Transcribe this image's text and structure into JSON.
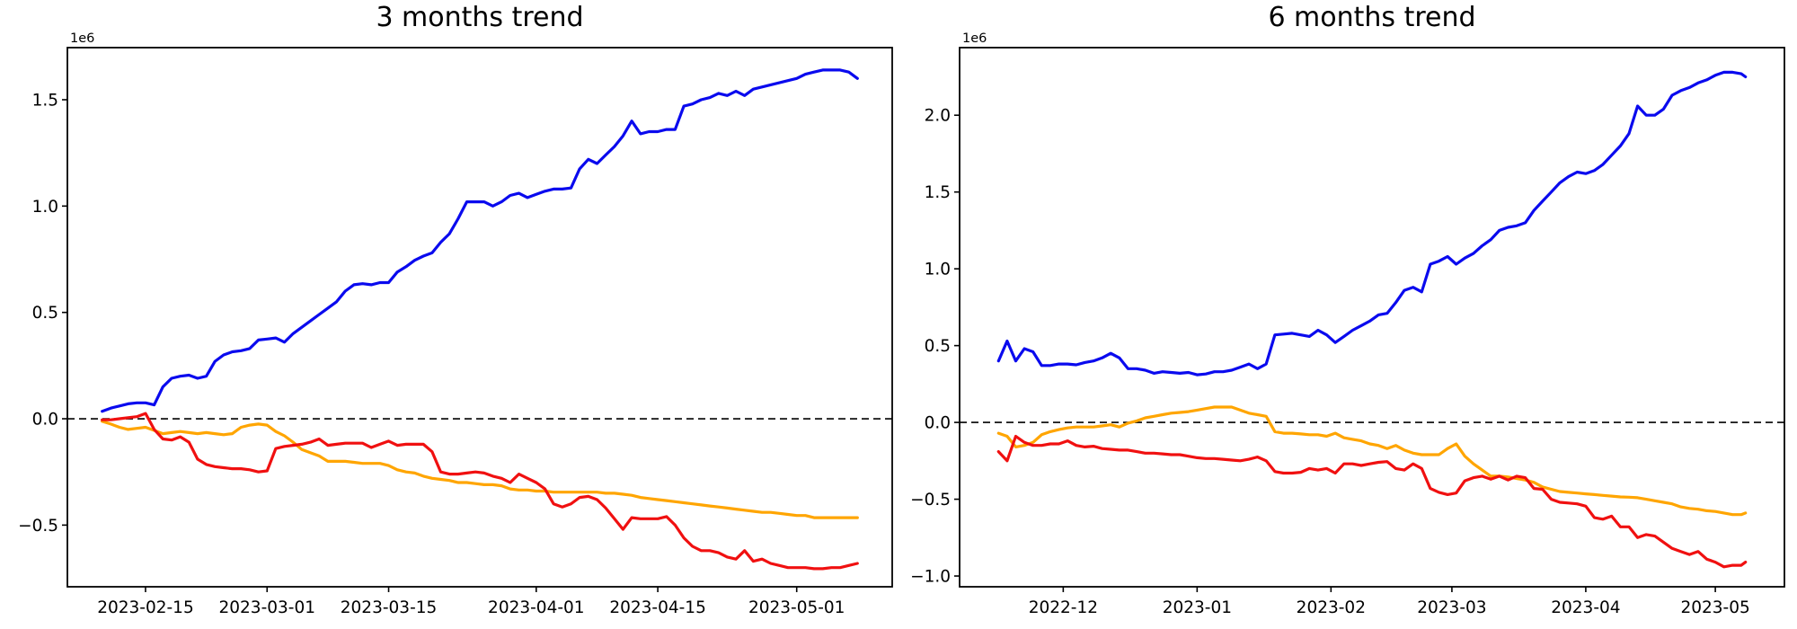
{
  "figure": {
    "background": "#ffffff",
    "text_color": "#000000",
    "axis_color": "#000000"
  },
  "chart_data": [
    {
      "type": "line",
      "name": "3-months-trend",
      "title": "3 months trend",
      "y_offset_label": "1e6",
      "y_unit": "values are in units of 1e6",
      "grid": false,
      "legend": null,
      "xlim": [
        "2023-02-06",
        "2023-05-12"
      ],
      "ylim": [
        -0.79,
        1.745
      ],
      "xticks": [
        {
          "date": "2023-02-15",
          "label": "2023-02-15"
        },
        {
          "date": "2023-03-01",
          "label": "2023-03-01"
        },
        {
          "date": "2023-03-15",
          "label": "2023-03-15"
        },
        {
          "date": "2023-04-01",
          "label": "2023-04-01"
        },
        {
          "date": "2023-04-15",
          "label": "2023-04-15"
        },
        {
          "date": "2023-05-01",
          "label": "2023-05-01"
        }
      ],
      "yticks": [
        {
          "value": -0.5,
          "label": "−0.5"
        },
        {
          "value": 0.0,
          "label": "0.0"
        },
        {
          "value": 0.5,
          "label": "0.5"
        },
        {
          "value": 1.0,
          "label": "1.0"
        },
        {
          "value": 1.5,
          "label": "1.5"
        }
      ],
      "zero_line": {
        "value": 0,
        "style": "dashed",
        "color": "#000000"
      },
      "x": [
        "2023-02-10",
        "2023-02-11",
        "2023-02-12",
        "2023-02-13",
        "2023-02-14",
        "2023-02-15",
        "2023-02-16",
        "2023-02-17",
        "2023-02-18",
        "2023-02-19",
        "2023-02-20",
        "2023-02-21",
        "2023-02-22",
        "2023-02-23",
        "2023-02-24",
        "2023-02-25",
        "2023-02-26",
        "2023-02-27",
        "2023-02-28",
        "2023-03-01",
        "2023-03-02",
        "2023-03-03",
        "2023-03-04",
        "2023-03-05",
        "2023-03-06",
        "2023-03-07",
        "2023-03-08",
        "2023-03-09",
        "2023-03-10",
        "2023-03-11",
        "2023-03-12",
        "2023-03-13",
        "2023-03-14",
        "2023-03-15",
        "2023-03-16",
        "2023-03-17",
        "2023-03-18",
        "2023-03-19",
        "2023-03-20",
        "2023-03-21",
        "2023-03-22",
        "2023-03-23",
        "2023-03-24",
        "2023-03-25",
        "2023-03-26",
        "2023-03-27",
        "2023-03-28",
        "2023-03-29",
        "2023-03-30",
        "2023-03-31",
        "2023-04-01",
        "2023-04-02",
        "2023-04-03",
        "2023-04-04",
        "2023-04-05",
        "2023-04-06",
        "2023-04-07",
        "2023-04-08",
        "2023-04-09",
        "2023-04-10",
        "2023-04-11",
        "2023-04-12",
        "2023-04-13",
        "2023-04-14",
        "2023-04-15",
        "2023-04-16",
        "2023-04-17",
        "2023-04-18",
        "2023-04-19",
        "2023-04-20",
        "2023-04-21",
        "2023-04-22",
        "2023-04-23",
        "2023-04-24",
        "2023-04-25",
        "2023-04-26",
        "2023-04-27",
        "2023-04-28",
        "2023-04-29",
        "2023-04-30",
        "2023-05-01",
        "2023-05-02",
        "2023-05-03",
        "2023-05-04",
        "2023-05-05",
        "2023-05-06",
        "2023-05-07",
        "2023-05-08"
      ],
      "series": [
        {
          "name": "blue",
          "color": "#0a0aee",
          "values": [
            0.035,
            0.05,
            0.06,
            0.07,
            0.075,
            0.075,
            0.065,
            0.15,
            0.19,
            0.2,
            0.205,
            0.19,
            0.2,
            0.27,
            0.3,
            0.315,
            0.32,
            0.33,
            0.37,
            0.375,
            0.38,
            0.36,
            0.4,
            0.43,
            0.46,
            0.49,
            0.52,
            0.55,
            0.6,
            0.63,
            0.635,
            0.63,
            0.64,
            0.64,
            0.69,
            0.715,
            0.745,
            0.765,
            0.78,
            0.83,
            0.87,
            0.94,
            1.02,
            1.02,
            1.02,
            1.0,
            1.02,
            1.05,
            1.06,
            1.04,
            1.055,
            1.07,
            1.08,
            1.08,
            1.085,
            1.175,
            1.22,
            1.2,
            1.24,
            1.28,
            1.33,
            1.4,
            1.34,
            1.35,
            1.35,
            1.36,
            1.36,
            1.47,
            1.48,
            1.5,
            1.51,
            1.53,
            1.52,
            1.54,
            1.52,
            1.55,
            1.56,
            1.57,
            1.58,
            1.59,
            1.6,
            1.62,
            1.63,
            1.64,
            1.64,
            1.64,
            1.63,
            1.6
          ]
        },
        {
          "name": "orange",
          "color": "#ffa500",
          "values": [
            -0.012,
            -0.025,
            -0.04,
            -0.05,
            -0.045,
            -0.04,
            -0.055,
            -0.07,
            -0.065,
            -0.06,
            -0.065,
            -0.07,
            -0.065,
            -0.07,
            -0.075,
            -0.07,
            -0.04,
            -0.03,
            -0.025,
            -0.03,
            -0.06,
            -0.08,
            -0.11,
            -0.145,
            -0.16,
            -0.175,
            -0.2,
            -0.2,
            -0.2,
            -0.205,
            -0.21,
            -0.21,
            -0.21,
            -0.22,
            -0.24,
            -0.25,
            -0.255,
            -0.27,
            -0.28,
            -0.285,
            -0.29,
            -0.3,
            -0.3,
            -0.305,
            -0.31,
            -0.31,
            -0.315,
            -0.33,
            -0.335,
            -0.335,
            -0.34,
            -0.34,
            -0.345,
            -0.345,
            -0.345,
            -0.345,
            -0.345,
            -0.345,
            -0.35,
            -0.35,
            -0.355,
            -0.36,
            -0.37,
            -0.375,
            -0.38,
            -0.385,
            -0.39,
            -0.395,
            -0.4,
            -0.405,
            -0.41,
            -0.415,
            -0.42,
            -0.425,
            -0.43,
            -0.435,
            -0.44,
            -0.44,
            -0.445,
            -0.45,
            -0.455,
            -0.455,
            -0.465,
            -0.465,
            -0.465,
            -0.465,
            -0.465,
            -0.465
          ]
        },
        {
          "name": "red",
          "color": "#f01010",
          "values": [
            -0.005,
            -0.005,
            0.0,
            0.005,
            0.01,
            0.025,
            -0.05,
            -0.095,
            -0.1,
            -0.085,
            -0.11,
            -0.19,
            -0.215,
            -0.225,
            -0.23,
            -0.235,
            -0.235,
            -0.24,
            -0.25,
            -0.245,
            -0.14,
            -0.13,
            -0.125,
            -0.12,
            -0.11,
            -0.095,
            -0.125,
            -0.12,
            -0.115,
            -0.115,
            -0.115,
            -0.135,
            -0.12,
            -0.105,
            -0.125,
            -0.12,
            -0.12,
            -0.12,
            -0.155,
            -0.25,
            -0.26,
            -0.26,
            -0.255,
            -0.25,
            -0.255,
            -0.27,
            -0.28,
            -0.3,
            -0.26,
            -0.28,
            -0.3,
            -0.33,
            -0.4,
            -0.415,
            -0.4,
            -0.37,
            -0.365,
            -0.38,
            -0.42,
            -0.47,
            -0.52,
            -0.465,
            -0.47,
            -0.47,
            -0.47,
            -0.46,
            -0.5,
            -0.56,
            -0.6,
            -0.62,
            -0.62,
            -0.63,
            -0.65,
            -0.66,
            -0.62,
            -0.67,
            -0.66,
            -0.68,
            -0.69,
            -0.7,
            -0.7,
            -0.7,
            -0.705,
            -0.705,
            -0.7,
            -0.7,
            -0.69,
            -0.68
          ]
        }
      ]
    },
    {
      "type": "line",
      "name": "6-months-trend",
      "title": "6 months trend",
      "y_offset_label": "1e6",
      "y_unit": "values are in units of 1e6",
      "grid": false,
      "legend": null,
      "xlim": [
        "2022-11-07",
        "2023-05-17"
      ],
      "ylim": [
        -1.07,
        2.44
      ],
      "xticks": [
        {
          "date": "2022-12-01",
          "label": "2022-12"
        },
        {
          "date": "2023-01-01",
          "label": "2023-01"
        },
        {
          "date": "2023-02-01",
          "label": "2023-02"
        },
        {
          "date": "2023-03-01",
          "label": "2023-03"
        },
        {
          "date": "2023-04-01",
          "label": "2023-04"
        },
        {
          "date": "2023-05-01",
          "label": "2023-05"
        }
      ],
      "yticks": [
        {
          "value": -1.0,
          "label": "−1.0"
        },
        {
          "value": -0.5,
          "label": "−0.5"
        },
        {
          "value": 0.0,
          "label": "0.0"
        },
        {
          "value": 0.5,
          "label": "0.5"
        },
        {
          "value": 1.0,
          "label": "1.0"
        },
        {
          "value": 1.5,
          "label": "1.5"
        },
        {
          "value": 2.0,
          "label": "2.0"
        }
      ],
      "zero_line": {
        "value": 0,
        "style": "dashed",
        "color": "#000000"
      },
      "x": [
        "2022-11-16",
        "2022-11-18",
        "2022-11-20",
        "2022-11-22",
        "2022-11-24",
        "2022-11-26",
        "2022-11-28",
        "2022-11-30",
        "2022-12-02",
        "2022-12-04",
        "2022-12-06",
        "2022-12-08",
        "2022-12-10",
        "2022-12-12",
        "2022-12-14",
        "2022-12-16",
        "2022-12-18",
        "2022-12-20",
        "2022-12-22",
        "2022-12-24",
        "2022-12-26",
        "2022-12-28",
        "2022-12-30",
        "2023-01-01",
        "2023-01-03",
        "2023-01-05",
        "2023-01-07",
        "2023-01-09",
        "2023-01-11",
        "2023-01-13",
        "2023-01-15",
        "2023-01-17",
        "2023-01-19",
        "2023-01-21",
        "2023-01-23",
        "2023-01-25",
        "2023-01-27",
        "2023-01-29",
        "2023-01-31",
        "2023-02-02",
        "2023-02-04",
        "2023-02-06",
        "2023-02-08",
        "2023-02-10",
        "2023-02-12",
        "2023-02-14",
        "2023-02-16",
        "2023-02-18",
        "2023-02-20",
        "2023-02-22",
        "2023-02-24",
        "2023-02-26",
        "2023-02-28",
        "2023-03-02",
        "2023-03-04",
        "2023-03-06",
        "2023-03-08",
        "2023-03-10",
        "2023-03-12",
        "2023-03-14",
        "2023-03-16",
        "2023-03-18",
        "2023-03-20",
        "2023-03-22",
        "2023-03-24",
        "2023-03-26",
        "2023-03-28",
        "2023-03-30",
        "2023-04-01",
        "2023-04-03",
        "2023-04-05",
        "2023-04-07",
        "2023-04-09",
        "2023-04-11",
        "2023-04-13",
        "2023-04-15",
        "2023-04-17",
        "2023-04-19",
        "2023-04-21",
        "2023-04-23",
        "2023-04-25",
        "2023-04-27",
        "2023-04-29",
        "2023-05-01",
        "2023-05-03",
        "2023-05-05",
        "2023-05-07",
        "2023-05-08"
      ],
      "series": [
        {
          "name": "blue",
          "color": "#0a0aee",
          "values": [
            0.4,
            0.53,
            0.4,
            0.48,
            0.46,
            0.37,
            0.37,
            0.38,
            0.38,
            0.375,
            0.39,
            0.4,
            0.42,
            0.45,
            0.42,
            0.35,
            0.35,
            0.34,
            0.32,
            0.33,
            0.325,
            0.32,
            0.325,
            0.31,
            0.315,
            0.33,
            0.33,
            0.34,
            0.36,
            0.38,
            0.35,
            0.38,
            0.57,
            0.575,
            0.58,
            0.57,
            0.56,
            0.6,
            0.57,
            0.52,
            0.56,
            0.6,
            0.63,
            0.66,
            0.7,
            0.71,
            0.78,
            0.86,
            0.88,
            0.85,
            1.03,
            1.05,
            1.08,
            1.03,
            1.07,
            1.1,
            1.15,
            1.19,
            1.25,
            1.27,
            1.28,
            1.3,
            1.38,
            1.44,
            1.5,
            1.56,
            1.6,
            1.63,
            1.62,
            1.64,
            1.68,
            1.74,
            1.8,
            1.88,
            2.06,
            2.0,
            2.0,
            2.04,
            2.13,
            2.16,
            2.18,
            2.21,
            2.23,
            2.26,
            2.28,
            2.28,
            2.27,
            2.25
          ]
        },
        {
          "name": "orange",
          "color": "#ffa500",
          "values": [
            -0.07,
            -0.09,
            -0.16,
            -0.15,
            -0.13,
            -0.08,
            -0.06,
            -0.047,
            -0.036,
            -0.03,
            -0.03,
            -0.03,
            -0.023,
            -0.015,
            -0.03,
            -0.005,
            0.01,
            0.03,
            0.04,
            0.05,
            0.06,
            0.065,
            0.07,
            0.08,
            0.09,
            0.1,
            0.1,
            0.1,
            0.08,
            0.06,
            0.05,
            0.04,
            -0.06,
            -0.07,
            -0.07,
            -0.075,
            -0.08,
            -0.08,
            -0.09,
            -0.07,
            -0.1,
            -0.11,
            -0.12,
            -0.14,
            -0.15,
            -0.17,
            -0.15,
            -0.18,
            -0.2,
            -0.21,
            -0.21,
            -0.21,
            -0.17,
            -0.14,
            -0.22,
            -0.27,
            -0.31,
            -0.35,
            -0.35,
            -0.355,
            -0.365,
            -0.375,
            -0.39,
            -0.42,
            -0.435,
            -0.45,
            -0.455,
            -0.46,
            -0.465,
            -0.47,
            -0.475,
            -0.48,
            -0.485,
            -0.487,
            -0.49,
            -0.5,
            -0.51,
            -0.52,
            -0.53,
            -0.55,
            -0.56,
            -0.565,
            -0.575,
            -0.58,
            -0.59,
            -0.6,
            -0.6,
            -0.59
          ]
        },
        {
          "name": "red",
          "color": "#f01010",
          "values": [
            -0.19,
            -0.25,
            -0.09,
            -0.13,
            -0.15,
            -0.15,
            -0.14,
            -0.14,
            -0.12,
            -0.15,
            -0.16,
            -0.155,
            -0.17,
            -0.175,
            -0.18,
            -0.18,
            -0.19,
            -0.2,
            -0.2,
            -0.205,
            -0.21,
            -0.21,
            -0.22,
            -0.23,
            -0.235,
            -0.235,
            -0.24,
            -0.245,
            -0.25,
            -0.24,
            -0.225,
            -0.25,
            -0.32,
            -0.33,
            -0.33,
            -0.325,
            -0.3,
            -0.31,
            -0.3,
            -0.33,
            -0.27,
            -0.27,
            -0.28,
            -0.27,
            -0.26,
            -0.255,
            -0.3,
            -0.31,
            -0.27,
            -0.3,
            -0.43,
            -0.455,
            -0.47,
            -0.46,
            -0.38,
            -0.36,
            -0.35,
            -0.37,
            -0.35,
            -0.375,
            -0.35,
            -0.36,
            -0.43,
            -0.435,
            -0.5,
            -0.52,
            -0.525,
            -0.53,
            -0.545,
            -0.62,
            -0.63,
            -0.61,
            -0.68,
            -0.68,
            -0.75,
            -0.73,
            -0.74,
            -0.78,
            -0.82,
            -0.84,
            -0.86,
            -0.84,
            -0.89,
            -0.91,
            -0.94,
            -0.93,
            -0.93,
            -0.91
          ]
        }
      ]
    }
  ]
}
